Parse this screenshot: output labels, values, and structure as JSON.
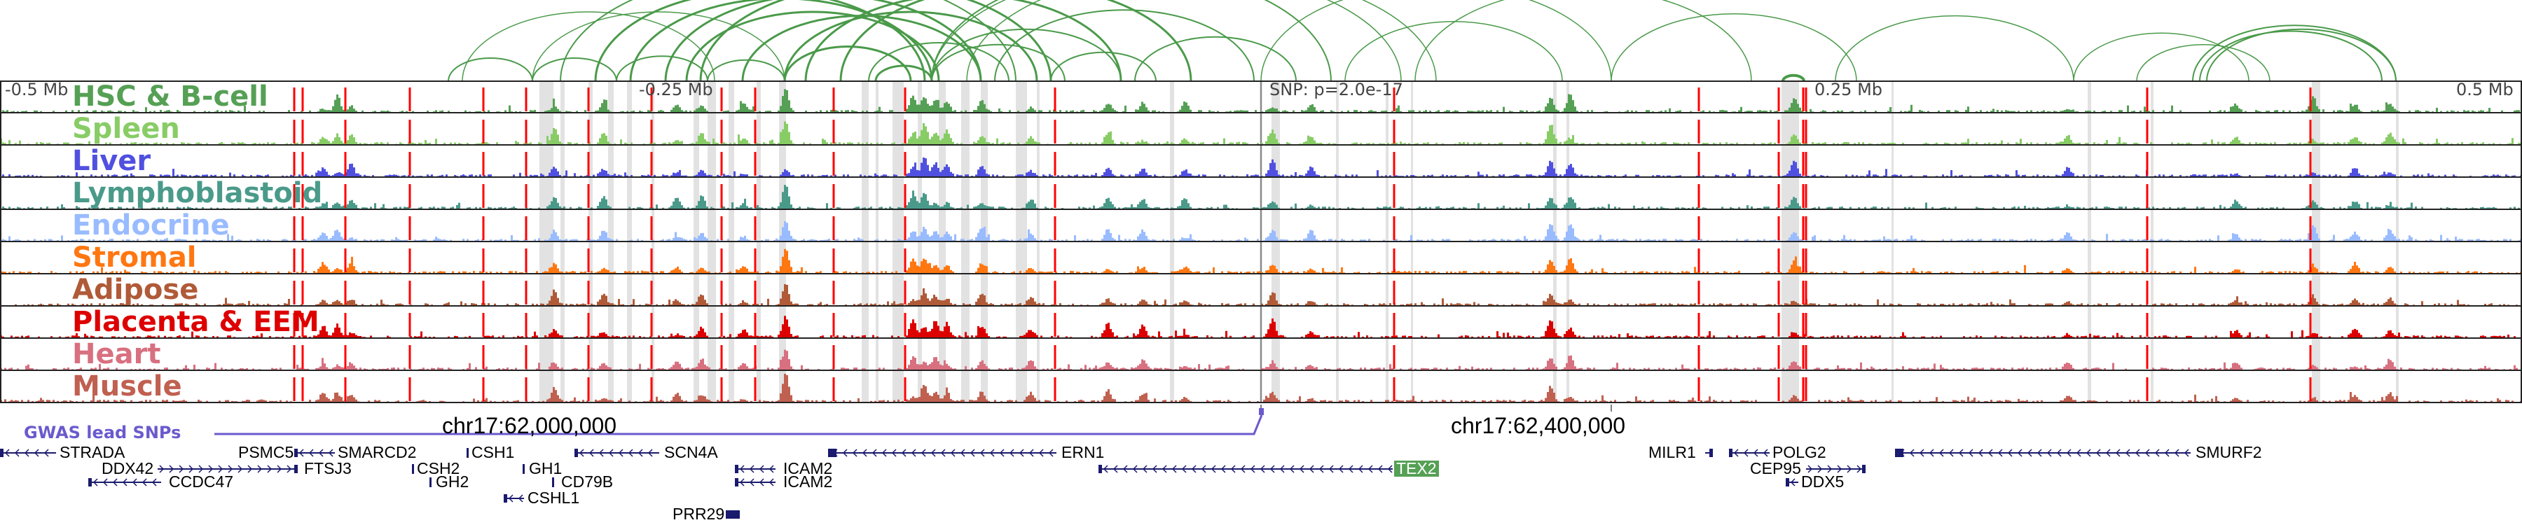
{
  "axis": {
    "left": "-0.5 Mb",
    "mid_left": "-0.25 Mb",
    "snp": "SNP: p=2.0e-17",
    "mid_right": "0.25 Mb",
    "right": "0.5 Mb"
  },
  "tracks": [
    {
      "label": "HSC & B-cell",
      "color": "#55a055"
    },
    {
      "label": "Spleen",
      "color": "#88cc66"
    },
    {
      "label": "Liver",
      "color": "#5050e0"
    },
    {
      "label": "Lymphoblastoid",
      "color": "#4a9a8a"
    },
    {
      "label": "Endocrine",
      "color": "#99bbff"
    },
    {
      "label": "Stromal",
      "color": "#ff7711"
    },
    {
      "label": "Adipose",
      "color": "#b05a38"
    },
    {
      "label": "Placenta & EEM",
      "color": "#dd0000"
    },
    {
      "label": "Heart",
      "color": "#d87080"
    },
    {
      "label": "Muscle",
      "color": "#c06050"
    }
  ],
  "coords": {
    "left": "chr17:62,000,000",
    "right": "chr17:62,400,000"
  },
  "gwas_label": "GWAS lead SNPs",
  "genes": {
    "strada": "STRADA",
    "psmc5": "PSMC5",
    "smarcd2": "SMARCD2",
    "ddx42": "DDX42",
    "ftsj3": "FTSJ3",
    "ccdc47": "CCDC47",
    "csh1": "CSH1",
    "csh2": "CSH2",
    "gh2": "GH2",
    "gh1": "GH1",
    "cd79b": "CD79B",
    "cshl1": "CSHL1",
    "scn4a": "SCN4A",
    "icam2a": "ICAM2",
    "icam2b": "ICAM2",
    "prr29": "PRR29",
    "ern1": "ERN1",
    "tex2": "TEX2",
    "milr1": "MILR1",
    "polg2": "POLG2",
    "cep95": "CEP95",
    "ddx5": "DDX5",
    "smurf2": "SMURF2"
  },
  "colors": {
    "arc": "#4a9a4a",
    "snp_line": "#6a5acd",
    "gene": "#1a1a6e",
    "highlight_red": "#ff0000",
    "highlight_grey": "#e2e2e2"
  }
}
